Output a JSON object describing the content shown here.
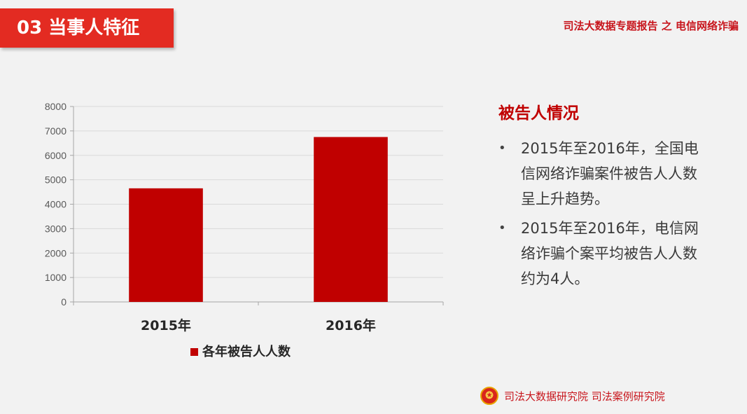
{
  "header": {
    "section_tag": "03  当事人特征",
    "report_title": "司法大数据专题报告 之 电信网络诈骗"
  },
  "panel": {
    "heading": "被告人情况",
    "bullets": [
      "2015年至2016年，全国电信网络诈骗案件被告人人数呈上升趋势。",
      "2015年至2016年，电信网络诈骗个案平均被告人人数约为4人。"
    ]
  },
  "footer": {
    "org_text": "司法大数据研究院  司法案例研究院",
    "emblem_icon": "court-emblem-icon"
  },
  "colors": {
    "accent": "#e32b22",
    "bar": "#c00000",
    "title_red": "#c8161d"
  },
  "chart_data": {
    "type": "bar",
    "categories": [
      "2015年",
      "2016年"
    ],
    "series": [
      {
        "name": "各年被告人人数",
        "values": [
          4650,
          6750
        ]
      }
    ],
    "ylim": [
      0,
      8000
    ],
    "yticks": [
      0,
      1000,
      2000,
      3000,
      4000,
      5000,
      6000,
      7000,
      8000
    ],
    "grid": true,
    "legend": "bottom",
    "title": "",
    "xlabel": "",
    "ylabel": ""
  }
}
